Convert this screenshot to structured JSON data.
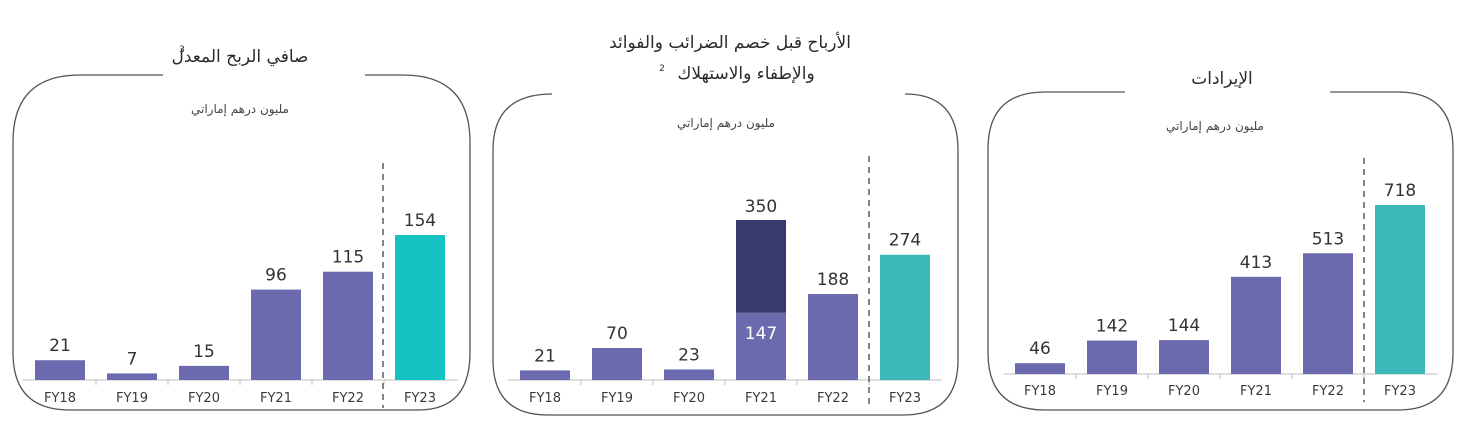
{
  "colors": {
    "bar": "#6b6aae",
    "highlight_cyan": "#14c2c2",
    "highlight_teal": "#3cb8bb",
    "stack_top": "#373a6c",
    "frame": "#555555",
    "dashed": "#666666"
  },
  "chart_data": [
    {
      "type": "bar",
      "title": "صافي الربح المعدل",
      "footnote": "3",
      "unit": "مليون درهم إماراتي",
      "categories": [
        "FY18",
        "FY19",
        "FY20",
        "FY21",
        "FY22",
        "FY23"
      ],
      "values": [
        21,
        7,
        15,
        96,
        115,
        154
      ],
      "highlight_index": 5,
      "highlight_color": "#14c2c2",
      "ylim": [
        0,
        154
      ],
      "grid": false,
      "legend": "none"
    },
    {
      "type": "bar",
      "title_lines": [
        "الأرباح قبل خصم الضرائب والفوائد",
        "والإطفاء والاستهلاك"
      ],
      "footnote": "2",
      "unit": "مليون درهم إماراتي",
      "categories": [
        "FY18",
        "FY19",
        "FY20",
        "FY21",
        "FY22",
        "FY23"
      ],
      "values": [
        21,
        70,
        23,
        147,
        188,
        274
      ],
      "stacked_total": {
        "index": 3,
        "total": 350
      },
      "highlight_index": 5,
      "highlight_color": "#3cb8bb",
      "ylim": [
        0,
        350
      ],
      "grid": false,
      "legend": "none"
    },
    {
      "type": "bar",
      "title": "الإيرادات",
      "unit": "مليون درهم إماراتي",
      "categories": [
        "FY18",
        "FY19",
        "FY20",
        "FY21",
        "FY22",
        "FY23"
      ],
      "values": [
        46,
        142,
        144,
        413,
        513,
        718
      ],
      "highlight_index": 5,
      "highlight_color": "#3cb8bb",
      "ylim": [
        0,
        718
      ],
      "grid": false,
      "legend": "none"
    }
  ]
}
